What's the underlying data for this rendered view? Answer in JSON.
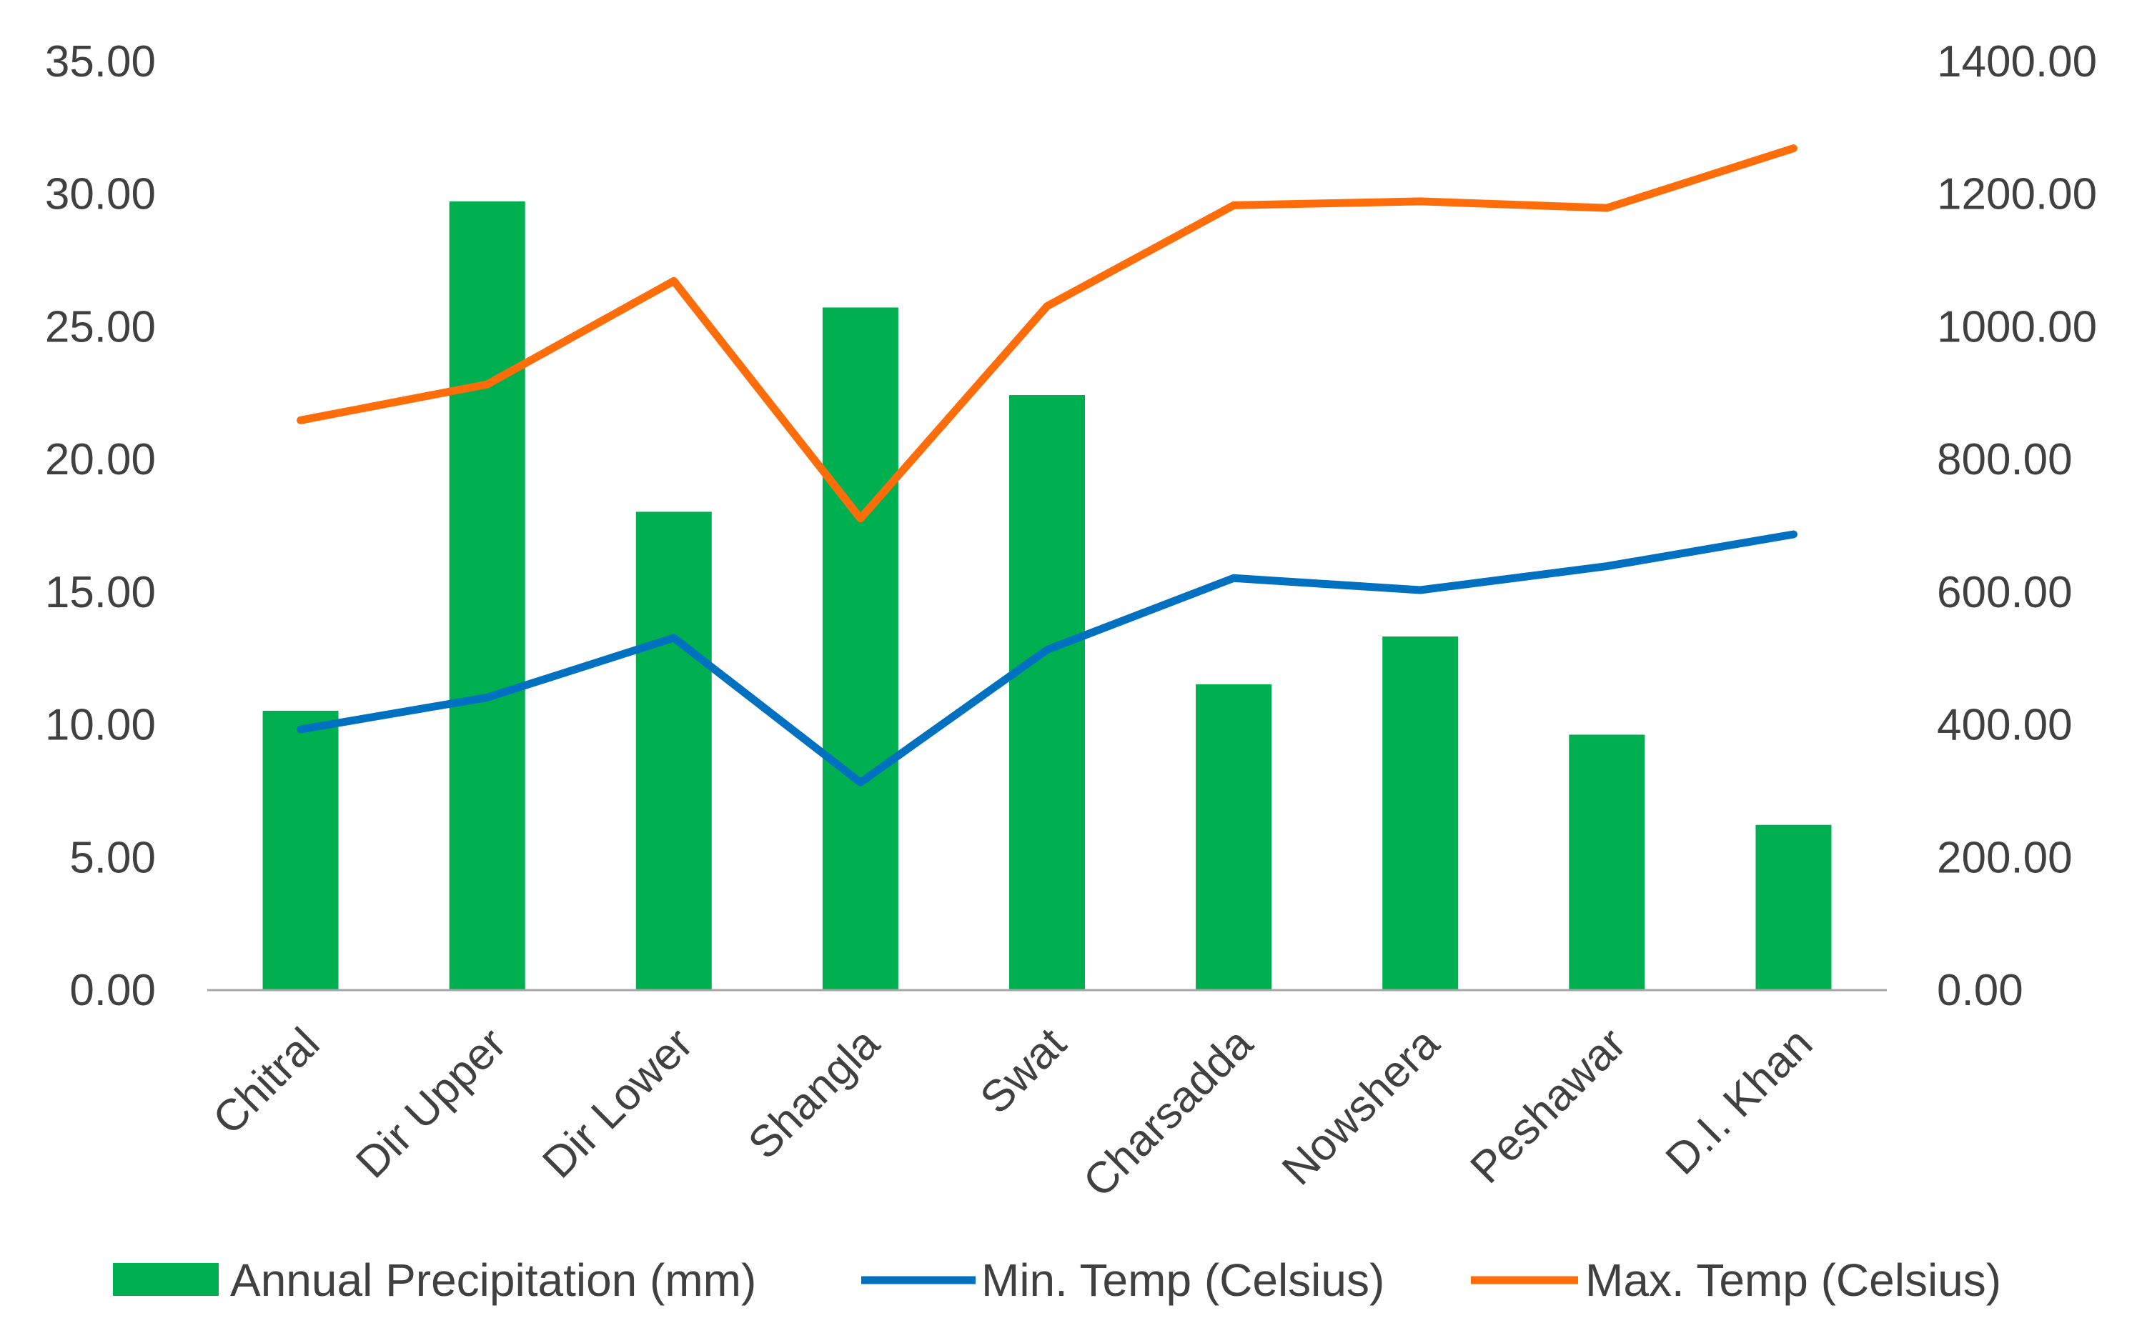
{
  "chart_data": {
    "type": "bar+line",
    "title": "",
    "categories": [
      "Chitral",
      "Dir Upper",
      "Dir Lower",
      "Shangla",
      "Swat",
      "Charsadda",
      "Nowshera",
      "Peshawar",
      "D.I. Khan"
    ],
    "bars": {
      "name": "Annual Precipitation (mm)",
      "axis": "left",
      "color": "#00B050",
      "values": [
        10.5,
        29.7,
        18.0,
        25.7,
        22.4,
        11.5,
        13.3,
        9.6,
        6.2
      ]
    },
    "lines": [
      {
        "name": "Min. Temp (Celsius)",
        "axis": "right",
        "color": "#0070C0",
        "values": [
          392,
          440,
          530,
          312,
          512,
          620,
          602,
          638,
          686
        ]
      },
      {
        "name": "Max. Temp (Celsius)",
        "axis": "right",
        "color": "#FF6D0A",
        "values": [
          858,
          912,
          1068,
          710,
          1030,
          1182,
          1188,
          1178,
          1268
        ]
      }
    ],
    "y_left": {
      "min": 0,
      "max": 35,
      "step": 5,
      "tick_labels": [
        "0.00",
        "5.00",
        "10.00",
        "15.00",
        "20.00",
        "25.00",
        "30.00",
        "35.00"
      ]
    },
    "y_right": {
      "min": 0,
      "max": 1400,
      "step": 200,
      "tick_labels": [
        "0.00",
        "200.00",
        "400.00",
        "600.00",
        "800.00",
        "1000.00",
        "1200.00",
        "1400.00"
      ]
    },
    "grid": false,
    "legend": {
      "position": "bottom",
      "entries": [
        "Annual Precipitation (mm)",
        "Min. Temp (Celsius)",
        "Max. Temp (Celsius)"
      ]
    }
  }
}
